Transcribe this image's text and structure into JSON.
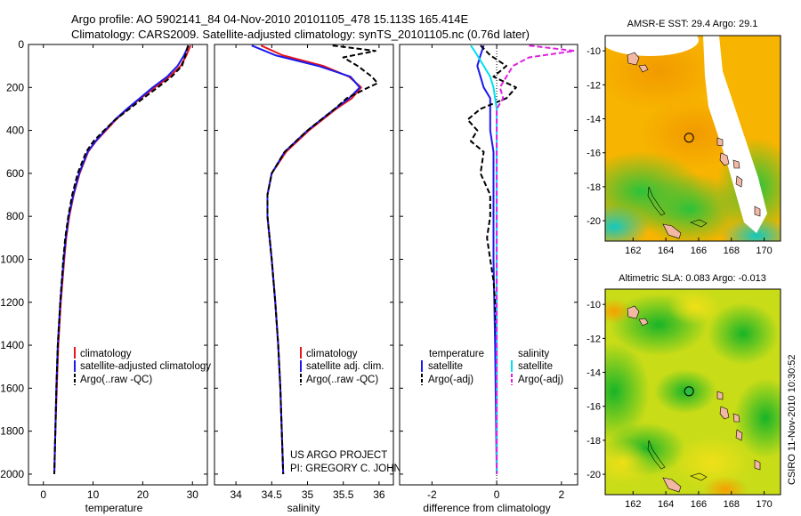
{
  "header": {
    "line1": "Argo profile: AO 5902141_84 04-Nov-2010 20101105_478 15.113S 165.414E",
    "line2": "Climatology: CARS2009. Satellite-adjusted climatology: synTS_20101105.nc (0.76d later)"
  },
  "colors": {
    "climatology": "#e8141c",
    "satellite": "#1a1aee",
    "argo": "#000000",
    "salinity_satellite": "#00e0f0",
    "salinity_argo": "#e020e0",
    "sst_warm": "#f4a400",
    "sst_cool": "#22c040",
    "sla_mid": "#d8e010",
    "land": "#f2b8a4"
  },
  "chart_data": [
    {
      "type": "line",
      "name": "temperature-profile",
      "xlabel": "temperature",
      "ylabel": "",
      "xlim": [
        -3,
        33
      ],
      "ylim": [
        2050,
        0
      ],
      "xticks": [
        "0",
        "10",
        "20",
        "30"
      ],
      "xtick_values": [
        0,
        10,
        20,
        30
      ],
      "yticks": [
        "0",
        "200",
        "400",
        "600",
        "800",
        "1000",
        "1200",
        "1400",
        "1600",
        "1800",
        "2000"
      ],
      "ytick_values": [
        0,
        200,
        400,
        600,
        800,
        1000,
        1200,
        1400,
        1600,
        1800,
        2000
      ],
      "legend": [
        "climatology",
        "satellite-adjusted climatology",
        "Argo(..raw -QC)"
      ],
      "series": [
        {
          "name": "climatology",
          "color": "#e8141c",
          "dash": "solid",
          "depth": [
            5,
            50,
            100,
            150,
            200,
            250,
            300,
            350,
            400,
            450,
            500,
            600,
            700,
            800,
            900,
            1000,
            1200,
            1400,
            1600,
            1800,
            2000
          ],
          "values": [
            29.6,
            28.8,
            27.6,
            25.4,
            22.4,
            19.6,
            17.0,
            14.6,
            12.6,
            10.6,
            9.0,
            7.3,
            6.1,
            5.2,
            4.6,
            4.2,
            3.5,
            3.0,
            2.7,
            2.4,
            2.2
          ]
        },
        {
          "name": "satellite",
          "color": "#1a1aee",
          "dash": "solid",
          "depth": [
            5,
            50,
            100,
            150,
            200,
            250,
            300,
            350,
            400,
            450,
            500,
            600,
            700,
            800,
            900,
            1000,
            1200,
            1400,
            1600,
            1800,
            2000
          ],
          "values": [
            29.2,
            28.3,
            27.0,
            24.9,
            22.0,
            19.4,
            16.8,
            14.4,
            12.4,
            10.5,
            8.9,
            7.2,
            6.0,
            5.1,
            4.5,
            4.1,
            3.4,
            2.9,
            2.6,
            2.4,
            2.2
          ]
        },
        {
          "name": "argo",
          "color": "#000000",
          "dash": "dashed",
          "depth": [
            5,
            50,
            100,
            150,
            200,
            250,
            300,
            350,
            400,
            450,
            500,
            600,
            700,
            800,
            900,
            1000,
            1200,
            1400,
            1600,
            1800,
            2000
          ],
          "values": [
            29.1,
            28.6,
            27.9,
            25.8,
            23.0,
            20.1,
            17.3,
            14.5,
            12.2,
            10.1,
            8.6,
            6.9,
            5.8,
            5.0,
            4.4,
            4.0,
            3.4,
            2.9,
            2.6,
            2.4,
            2.2
          ]
        }
      ]
    },
    {
      "type": "line",
      "name": "salinity-profile",
      "xlabel": "salinity",
      "xlim": [
        33.7,
        36.2
      ],
      "ylim": [
        2050,
        0
      ],
      "xticks": [
        "34",
        "34.5",
        "35",
        "35.5",
        "36"
      ],
      "xtick_values": [
        34,
        34.5,
        35,
        35.5,
        36
      ],
      "legend": [
        "climatology",
        "satellite adj. clim.",
        "Argo(..raw -QC)"
      ],
      "annotation": [
        "US ARGO PROJECT",
        "PI: GREGORY C. JOHNSON"
      ],
      "series": [
        {
          "name": "climatology",
          "color": "#e8141c",
          "dash": "solid",
          "depth": [
            5,
            50,
            100,
            150,
            200,
            250,
            300,
            400,
            500,
            600,
            700,
            800,
            900,
            1000,
            1200,
            1400,
            1600,
            1800,
            2000
          ],
          "values": [
            34.35,
            34.65,
            35.22,
            35.58,
            35.75,
            35.62,
            35.4,
            35.02,
            34.7,
            34.5,
            34.44,
            34.44,
            34.47,
            34.5,
            34.55,
            34.59,
            34.62,
            34.64,
            34.66
          ]
        },
        {
          "name": "satellite",
          "color": "#1a1aee",
          "dash": "solid",
          "depth": [
            5,
            50,
            100,
            150,
            200,
            250,
            300,
            400,
            500,
            600,
            700,
            800,
            900,
            1000,
            1200,
            1400,
            1600,
            1800,
            2000
          ],
          "values": [
            34.22,
            34.55,
            35.15,
            35.6,
            35.73,
            35.58,
            35.38,
            35.0,
            34.68,
            34.5,
            34.44,
            34.44,
            34.47,
            34.5,
            34.55,
            34.59,
            34.62,
            34.64,
            34.66
          ]
        },
        {
          "name": "argo",
          "color": "#000000",
          "dash": "dashed",
          "depth": [
            5,
            30,
            60,
            100,
            150,
            180,
            200,
            250,
            300,
            400,
            500,
            600,
            700,
            800,
            900,
            1000,
            1200,
            1400,
            1600,
            1800,
            2000
          ],
          "values": [
            35.35,
            35.95,
            35.5,
            35.7,
            35.9,
            35.98,
            35.85,
            35.55,
            35.38,
            35.0,
            34.68,
            34.5,
            34.44,
            34.44,
            34.47,
            34.5,
            34.55,
            34.59,
            34.62,
            34.64,
            34.66
          ]
        }
      ]
    },
    {
      "type": "line",
      "name": "difference-from-climatology",
      "xlabel": "difference from climatology",
      "xlim": [
        -3,
        2.5
      ],
      "ylim": [
        2050,
        0
      ],
      "xticks": [
        "-2",
        "0",
        "2"
      ],
      "xtick_values": [
        -2,
        0,
        2
      ],
      "legend_titles": [
        "temperature",
        "salinity"
      ],
      "legend": [
        "satellite",
        "Argo(-adj)",
        "satellite",
        "Argo(-adj)"
      ],
      "series": [
        {
          "name": "temperature satellite",
          "color": "#1a1aee",
          "dash": "solid",
          "depth": [
            5,
            50,
            100,
            150,
            200,
            250,
            300,
            400,
            500,
            600,
            800,
            1000,
            1400,
            2000
          ],
          "values": [
            -0.4,
            -0.5,
            -0.6,
            -0.5,
            -0.4,
            -0.2,
            -0.2,
            -0.2,
            -0.1,
            -0.1,
            -0.1,
            -0.1,
            -0.05,
            0
          ]
        },
        {
          "name": "temperature argo",
          "color": "#000000",
          "dash": "dashed",
          "depth": [
            5,
            50,
            100,
            150,
            200,
            250,
            300,
            350,
            400,
            450,
            500,
            600,
            700,
            800,
            900,
            1000,
            1100,
            1200,
            1400,
            1600,
            1800,
            2000
          ],
          "values": [
            -0.5,
            -0.2,
            0.3,
            -0.1,
            0.6,
            0.3,
            -0.5,
            -0.9,
            -0.6,
            -0.8,
            -0.4,
            -0.5,
            -0.2,
            -0.2,
            -0.3,
            -0.2,
            -0.1,
            -0.05,
            0,
            0,
            0,
            0
          ]
        },
        {
          "name": "salinity satellite",
          "color": "#00e0f0",
          "dash": "solid",
          "depth": [
            5,
            50,
            100,
            150,
            200,
            250,
            300,
            400,
            500,
            600,
            800,
            1000,
            1400,
            2000
          ],
          "values": [
            -0.8,
            -0.6,
            -0.4,
            -0.2,
            -0.1,
            -0.05,
            0,
            0,
            0,
            0,
            0,
            0,
            0,
            0
          ]
        },
        {
          "name": "salinity argo",
          "color": "#e020e0",
          "dash": "dashed",
          "depth": [
            5,
            30,
            60,
            100,
            150,
            200,
            250,
            300,
            400,
            500,
            600,
            800,
            1000,
            1400,
            2000
          ],
          "values": [
            1.0,
            2.4,
            1.0,
            0.5,
            0.3,
            0.1,
            0.2,
            0,
            0,
            0,
            0,
            0,
            0,
            0,
            0
          ]
        }
      ]
    },
    {
      "type": "heatmap",
      "name": "sst-map",
      "title": "AMSR-E SST: 29.4 Argo: 29.1",
      "xlim": [
        160.3,
        171
      ],
      "ylim": [
        -21.2,
        -9.1
      ],
      "xticks": [
        "162",
        "164",
        "166",
        "168",
        "170"
      ],
      "xtick_values": [
        162,
        164,
        166,
        168,
        170
      ],
      "yticks": [
        "-10",
        "-12",
        "-14",
        "-16",
        "-18",
        "-20"
      ],
      "ytick_values": [
        -10,
        -12,
        -14,
        -16,
        -18,
        -20
      ],
      "float_position": [
        165.414,
        -15.113
      ]
    },
    {
      "type": "heatmap",
      "name": "sla-map",
      "title": "Altimetric SLA: 0.083 Argo: -0.013",
      "xlim": [
        160.3,
        171
      ],
      "ylim": [
        -21.2,
        -9.1
      ],
      "xticks": [
        "162",
        "164",
        "166",
        "168",
        "170"
      ],
      "xtick_values": [
        162,
        164,
        166,
        168,
        170
      ],
      "yticks": [
        "-10",
        "-12",
        "-14",
        "-16",
        "-18",
        "-20"
      ],
      "ytick_values": [
        -10,
        -12,
        -14,
        -16,
        -18,
        -20
      ],
      "float_position": [
        165.414,
        -15.113
      ]
    }
  ],
  "footer": {
    "credit": "CSIRO 11-Nov-2010 10:30:52"
  }
}
